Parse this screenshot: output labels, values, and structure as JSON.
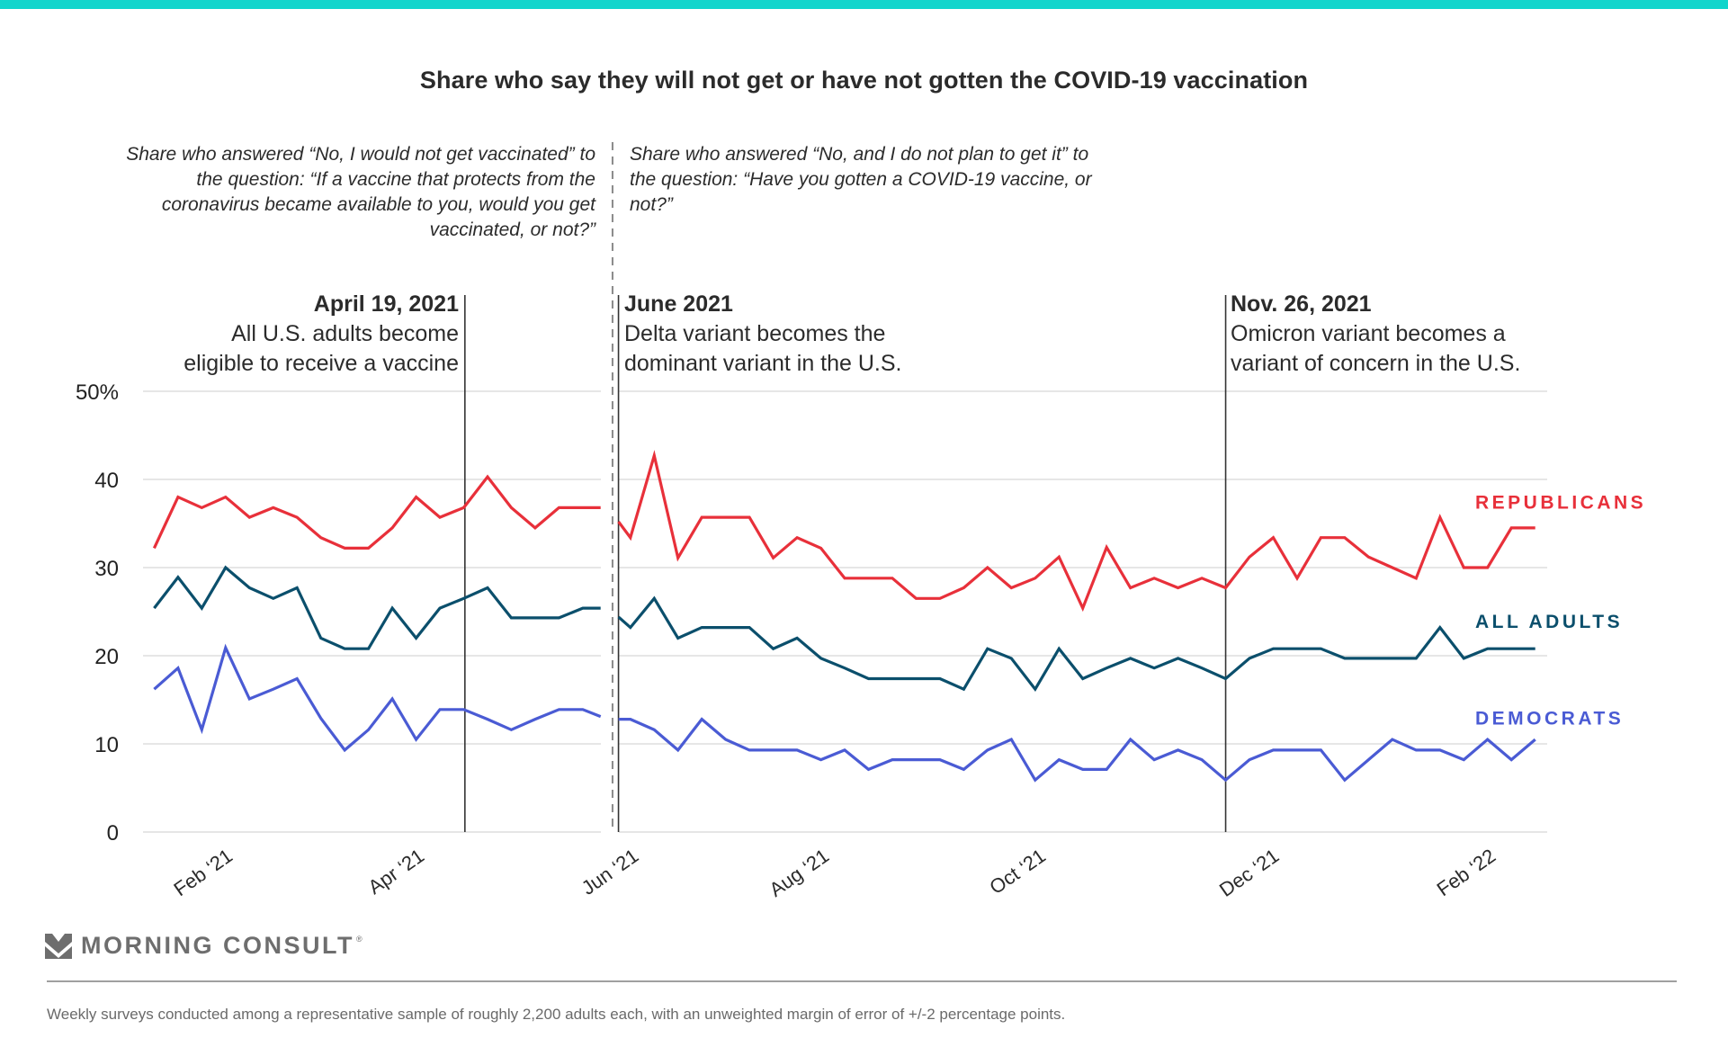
{
  "top_bar_color": "#12d5cc",
  "chart_data": {
    "type": "line",
    "title": "Share who say they will not get or have not gotten the COVID-19 vaccination",
    "xlabel": "",
    "ylabel": "",
    "x_unit": "weeks since first survey (Jan 2021)",
    "ylim": [
      0,
      50
    ],
    "y_ticks": [
      {
        "value": 0,
        "label": "0"
      },
      {
        "value": 10,
        "label": "10"
      },
      {
        "value": 20,
        "label": "20"
      },
      {
        "value": 30,
        "label": "30"
      },
      {
        "value": 40,
        "label": "40"
      },
      {
        "value": 50,
        "label": "50%"
      }
    ],
    "x_ticks": [
      {
        "week": 3.35,
        "label": "Feb ‘21"
      },
      {
        "week": 11.4,
        "label": "Apr ‘21"
      },
      {
        "week": 20.4,
        "label": "Jun ‘21"
      },
      {
        "week": 28.4,
        "label": "Aug ‘21"
      },
      {
        "week": 37.5,
        "label": "Oct ‘21"
      },
      {
        "week": 47.3,
        "label": "Dec ‘21"
      },
      {
        "week": 56.4,
        "label": "Feb ‘22"
      }
    ],
    "xlim": [
      0,
      58.6
    ],
    "grid": true,
    "legend": "right, inline labels",
    "question_break_week": 19.25,
    "segments": [
      {
        "name": "before-question-change",
        "x": [
          0,
          1,
          2,
          3,
          4,
          5,
          6,
          7,
          8,
          9,
          10,
          11,
          12,
          13,
          14,
          15,
          16,
          17,
          18,
          18.75
        ]
      },
      {
        "name": "after-question-change",
        "x": [
          19.5,
          20,
          21,
          22,
          23,
          24,
          25,
          26,
          27,
          28,
          29,
          30,
          31,
          32,
          33,
          34,
          35,
          36,
          37,
          38,
          39,
          40,
          41,
          42,
          43,
          44,
          45,
          46,
          47,
          48,
          49,
          50,
          51,
          52,
          53,
          54,
          55,
          56,
          57,
          58
        ]
      }
    ],
    "series": [
      {
        "name": "REPUBLICANS",
        "color": "#e8303a",
        "values": [
          [
            32.2,
            38.0,
            36.8,
            38.0,
            35.7,
            36.8,
            35.7,
            33.4,
            32.2,
            32.2,
            34.5,
            38.0,
            35.7,
            36.8,
            40.3,
            36.8,
            34.5,
            36.8,
            36.8,
            36.8
          ],
          [
            35.2,
            33.4,
            42.7,
            31.1,
            35.7,
            35.7,
            35.7,
            31.1,
            33.4,
            32.2,
            28.8,
            28.8,
            28.8,
            26.5,
            26.5,
            27.7,
            30.0,
            27.7,
            28.8,
            31.2,
            25.4,
            32.3,
            27.7,
            28.8,
            27.7,
            28.8,
            27.7,
            31.2,
            33.4,
            28.8,
            33.4,
            33.4,
            31.2,
            30.0,
            28.8,
            35.7,
            30.0,
            30.0,
            34.5,
            34.5
          ]
        ],
        "label_value": 37.5
      },
      {
        "name": "ALL ADULTS",
        "color": "#0b4f6c",
        "values": [
          [
            25.4,
            28.9,
            25.4,
            30.0,
            27.7,
            26.5,
            27.7,
            22.0,
            20.8,
            20.8,
            25.4,
            22.0,
            25.4,
            26.5,
            27.7,
            24.3,
            24.3,
            24.3,
            25.4,
            25.4
          ],
          [
            24.4,
            23.2,
            26.5,
            22.0,
            23.2,
            23.2,
            23.2,
            20.8,
            22.0,
            19.7,
            18.6,
            17.4,
            17.4,
            17.4,
            17.4,
            16.2,
            20.8,
            19.7,
            16.2,
            20.8,
            17.4,
            18.6,
            19.7,
            18.6,
            19.7,
            18.6,
            17.4,
            19.7,
            20.8,
            20.8,
            20.8,
            19.7,
            19.7,
            19.7,
            19.7,
            23.2,
            19.7,
            20.8,
            20.8,
            20.8
          ]
        ],
        "label_value": 24.0
      },
      {
        "name": "DEMOCRATS",
        "color": "#4a5bd4",
        "values": [
          [
            16.2,
            18.6,
            11.6,
            20.9,
            15.1,
            16.2,
            17.4,
            12.9,
            9.3,
            11.6,
            15.1,
            10.5,
            13.9,
            13.9,
            12.8,
            11.6,
            12.8,
            13.9,
            13.9,
            13.1
          ],
          [
            12.8,
            12.8,
            11.6,
            9.3,
            12.8,
            10.5,
            9.3,
            9.3,
            9.3,
            8.2,
            9.3,
            7.1,
            8.2,
            8.2,
            8.2,
            7.1,
            9.3,
            10.5,
            5.9,
            8.2,
            7.1,
            7.1,
            10.5,
            8.2,
            9.3,
            8.2,
            5.9,
            8.2,
            9.3,
            9.3,
            9.3,
            5.9,
            8.2,
            10.5,
            9.3,
            9.3,
            8.2,
            10.5,
            8.2,
            10.5
          ]
        ],
        "label_value": 13.0
      }
    ],
    "events": [
      {
        "week": 13.05,
        "title": "April 19, 2021",
        "line1": "All U.S. adults become",
        "line2": "eligible to receive a vaccine",
        "align": "left-of-line"
      },
      {
        "week": 19.5,
        "title": "June 2021",
        "line1": "Delta variant becomes the",
        "line2": "dominant variant in the U.S.",
        "align": "right-of-line"
      },
      {
        "week": 45.0,
        "title": "Nov. 26, 2021",
        "line1": "Omicron variant becomes a",
        "line2": "variant of concern in the U.S.",
        "align": "right-of-line"
      }
    ],
    "question_notes": {
      "left": "Share who answered “No, I would not get vaccinated” to the question: “If a vaccine that protects from the coronavirus became available to you, would you get vaccinated, or not?”",
      "right": "Share who answered “No, and I do not plan to get it” to the question: “Have you gotten a COVID-19 vaccine, or not?”"
    }
  },
  "branding": {
    "logo_icon": "morning-consult-chevron-icon",
    "name": "MORNING CONSULT",
    "registered": "®"
  },
  "footnote": "Weekly surveys conducted among a representative sample of roughly 2,200 adults each, with an unweighted margin of error of +/-2 percentage points."
}
